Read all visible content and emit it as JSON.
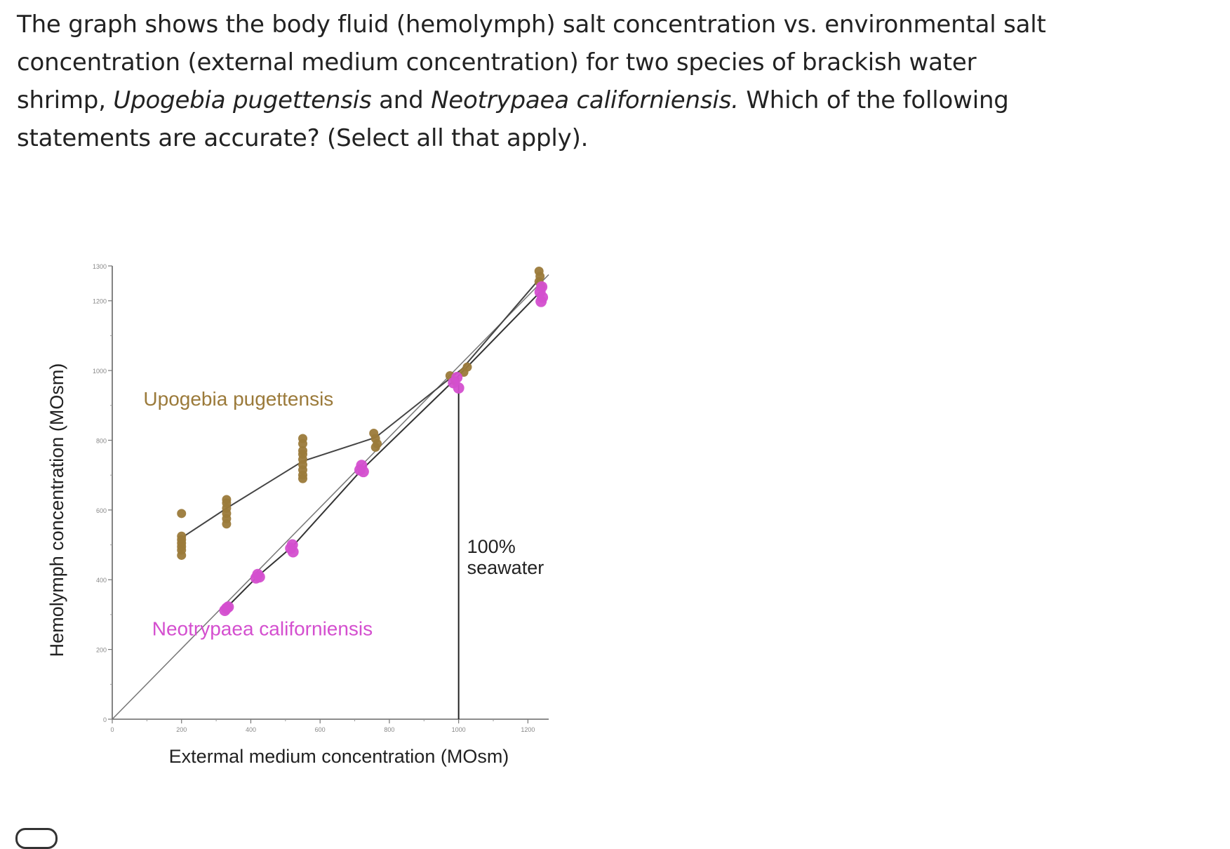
{
  "question": {
    "part1": "The graph shows the body fluid (hemolymph) salt concentration vs. environmental salt concentration (external medium concentration) for two species of brackish water shrimp, ",
    "species1": "Upogebia pugettensis",
    "part2": " and ",
    "species2": "Neotrypaea californiensis.",
    "part3": " Which of the following statements are accurate? (Select all that apply)."
  },
  "chart_data": {
    "type": "scatter",
    "title": "",
    "xlabel": "Extermal medium concentration (MOsm)",
    "ylabel": "Hemolymph concentration (MOsm)",
    "xlim": [
      0,
      1260
    ],
    "ylim": [
      0,
      1300
    ],
    "x_ticks": [
      0,
      200,
      400,
      600,
      800,
      1000,
      1200
    ],
    "x_tick_labels": [
      "0",
      "200",
      "400",
      "600",
      "800",
      "1000",
      "1200"
    ],
    "y_ticks": [
      0,
      200,
      400,
      600,
      800,
      1000,
      1200,
      1300
    ],
    "y_tick_labels": [
      "0",
      "200",
      "400",
      "600",
      "800",
      "1000",
      "1200",
      "1300"
    ],
    "reference_line": {
      "name": "isosmotic line",
      "from": [
        0,
        0
      ],
      "to": [
        1260,
        1275
      ]
    },
    "seawater_line": {
      "x": 1000,
      "y_top": 980,
      "label_line1": "100%",
      "label_line2": "seawater"
    },
    "series": [
      {
        "name": "Upogebia pugettensis",
        "color": "#9b7a3a",
        "label_pos": [
          90,
          900
        ],
        "mean_line": [
          [
            200,
            520
          ],
          [
            330,
            605
          ],
          [
            550,
            740
          ],
          [
            760,
            808
          ],
          [
            1010,
            1005
          ],
          [
            1235,
            1265
          ]
        ],
        "points": [
          [
            200,
            590
          ],
          [
            200,
            525
          ],
          [
            200,
            515
          ],
          [
            200,
            505
          ],
          [
            200,
            495
          ],
          [
            200,
            485
          ],
          [
            200,
            470
          ],
          [
            330,
            630
          ],
          [
            330,
            620
          ],
          [
            330,
            605
          ],
          [
            330,
            590
          ],
          [
            330,
            575
          ],
          [
            330,
            560
          ],
          [
            550,
            805
          ],
          [
            550,
            790
          ],
          [
            550,
            770
          ],
          [
            550,
            760
          ],
          [
            550,
            745
          ],
          [
            550,
            730
          ],
          [
            550,
            715
          ],
          [
            550,
            700
          ],
          [
            550,
            690
          ],
          [
            755,
            820
          ],
          [
            760,
            805
          ],
          [
            765,
            790
          ],
          [
            760,
            780
          ],
          [
            975,
            985
          ],
          [
            1025,
            1010
          ],
          [
            1015,
            995
          ],
          [
            990,
            970
          ],
          [
            1232,
            1285
          ],
          [
            1235,
            1270
          ],
          [
            1232,
            1255
          ],
          [
            1238,
            1240
          ]
        ]
      },
      {
        "name": "Neotrypaea californiensis",
        "color": "#d44fcf",
        "label_pos": [
          115,
          240
        ],
        "mean_line": [
          [
            330,
            320
          ],
          [
            420,
            410
          ],
          [
            520,
            495
          ],
          [
            720,
            715
          ],
          [
            990,
            975
          ],
          [
            1240,
            1230
          ]
        ],
        "points": [
          [
            330,
            318
          ],
          [
            325,
            312
          ],
          [
            335,
            322
          ],
          [
            420,
            415
          ],
          [
            415,
            405
          ],
          [
            425,
            408
          ],
          [
            520,
            500
          ],
          [
            515,
            490
          ],
          [
            522,
            480
          ],
          [
            720,
            728
          ],
          [
            715,
            715
          ],
          [
            725,
            710
          ],
          [
            995,
            980
          ],
          [
            985,
            965
          ],
          [
            1000,
            950
          ],
          [
            1240,
            1240
          ],
          [
            1235,
            1225
          ],
          [
            1242,
            1210
          ],
          [
            1238,
            1198
          ]
        ]
      }
    ],
    "grid": false,
    "legend": "none"
  }
}
